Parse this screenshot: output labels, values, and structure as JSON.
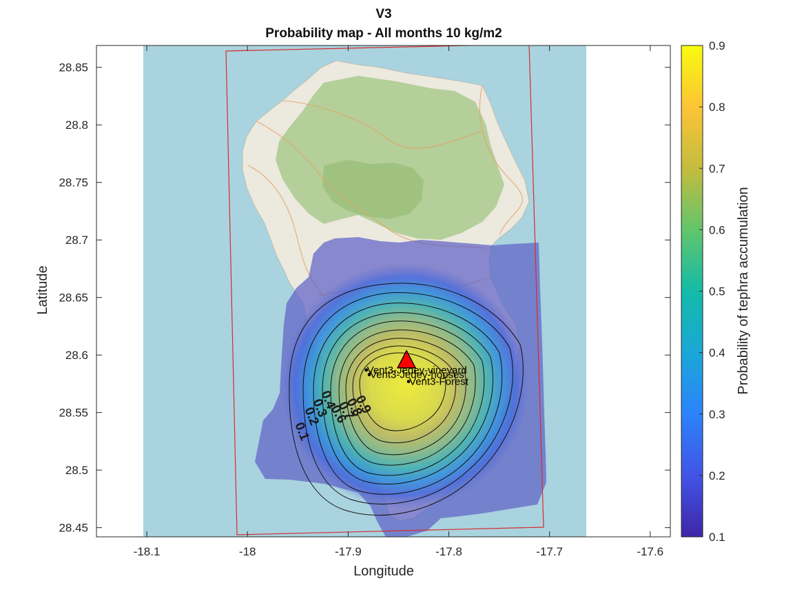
{
  "title": {
    "line1": "V3",
    "line2": "Probability map - All months 10 kg/m2"
  },
  "axes": {
    "xlabel": "Longitude",
    "ylabel": "Latitude",
    "xlim": [
      -18.15,
      -17.58
    ],
    "ylim": [
      28.442,
      28.869
    ],
    "xticks": [
      "-18.1",
      "-18",
      "-17.9",
      "-17.8",
      "-17.7",
      "-17.6"
    ],
    "xtick_values": [
      -18.1,
      -18.0,
      -17.9,
      -17.8,
      -17.7,
      -17.6
    ],
    "yticks": [
      "28.85",
      "28.8",
      "28.75",
      "28.7",
      "28.65",
      "28.6",
      "28.55",
      "28.5",
      "28.45"
    ],
    "ytick_values": [
      28.85,
      28.8,
      28.75,
      28.7,
      28.65,
      28.6,
      28.55,
      28.5,
      28.45
    ]
  },
  "colorbar": {
    "label": "Probability of tephra accumulation",
    "ticks": [
      "0.9",
      "0.8",
      "0.7",
      "0.6",
      "0.5",
      "0.4",
      "0.3",
      "0.2",
      "0.1"
    ],
    "tick_values": [
      0.9,
      0.8,
      0.7,
      0.6,
      0.5,
      0.4,
      0.3,
      0.2,
      0.1
    ],
    "colormap": "parula"
  },
  "contour_labels": [
    "0.9",
    "0.8",
    "0.7",
    "0.6",
    "0.4",
    "0.3",
    "0.2",
    "0.1"
  ],
  "vent": {
    "lon": -17.842,
    "lat": 28.593,
    "color": "#ff0000"
  },
  "points": [
    {
      "label": "Vent3-Jedey-vineyard",
      "lon": -17.882,
      "lat": 28.587
    },
    {
      "label": "Vent3-Jedey-houses",
      "lon": -17.879,
      "lat": 28.583
    },
    {
      "label": "Vent3-Forest",
      "lon": -17.84,
      "lat": 28.577
    }
  ],
  "chart_data": {
    "type": "heatmap",
    "title": "V3\nProbability map - All months 10 kg/m2",
    "xlabel": "Longitude",
    "ylabel": "Latitude",
    "xlim": [
      -18.15,
      -17.58
    ],
    "ylim": [
      28.442,
      28.869
    ],
    "color_range": [
      0.1,
      0.9
    ],
    "colorbar_label": "Probability of tephra accumulation",
    "contour_levels": [
      0.1,
      0.2,
      0.3,
      0.4,
      0.5,
      0.6,
      0.7,
      0.8,
      0.9
    ],
    "peak_probability": 0.9,
    "vent_location": {
      "lon": -17.842,
      "lat": 28.593
    },
    "points": [
      {
        "name": "Vent3-Jedey-vineyard",
        "lon": -17.882,
        "lat": 28.587
      },
      {
        "name": "Vent3-Jedey-houses",
        "lon": -17.879,
        "lat": 28.583
      },
      {
        "name": "Vent3-Forest",
        "lon": -17.84,
        "lat": 28.577
      }
    ],
    "grid": false
  },
  "colors": {
    "sea": "#a9d3df",
    "land": "#ebe9df",
    "forest": "#abc98f",
    "domain_box": "#d62b2b",
    "background_mask": "#6e72c2"
  }
}
